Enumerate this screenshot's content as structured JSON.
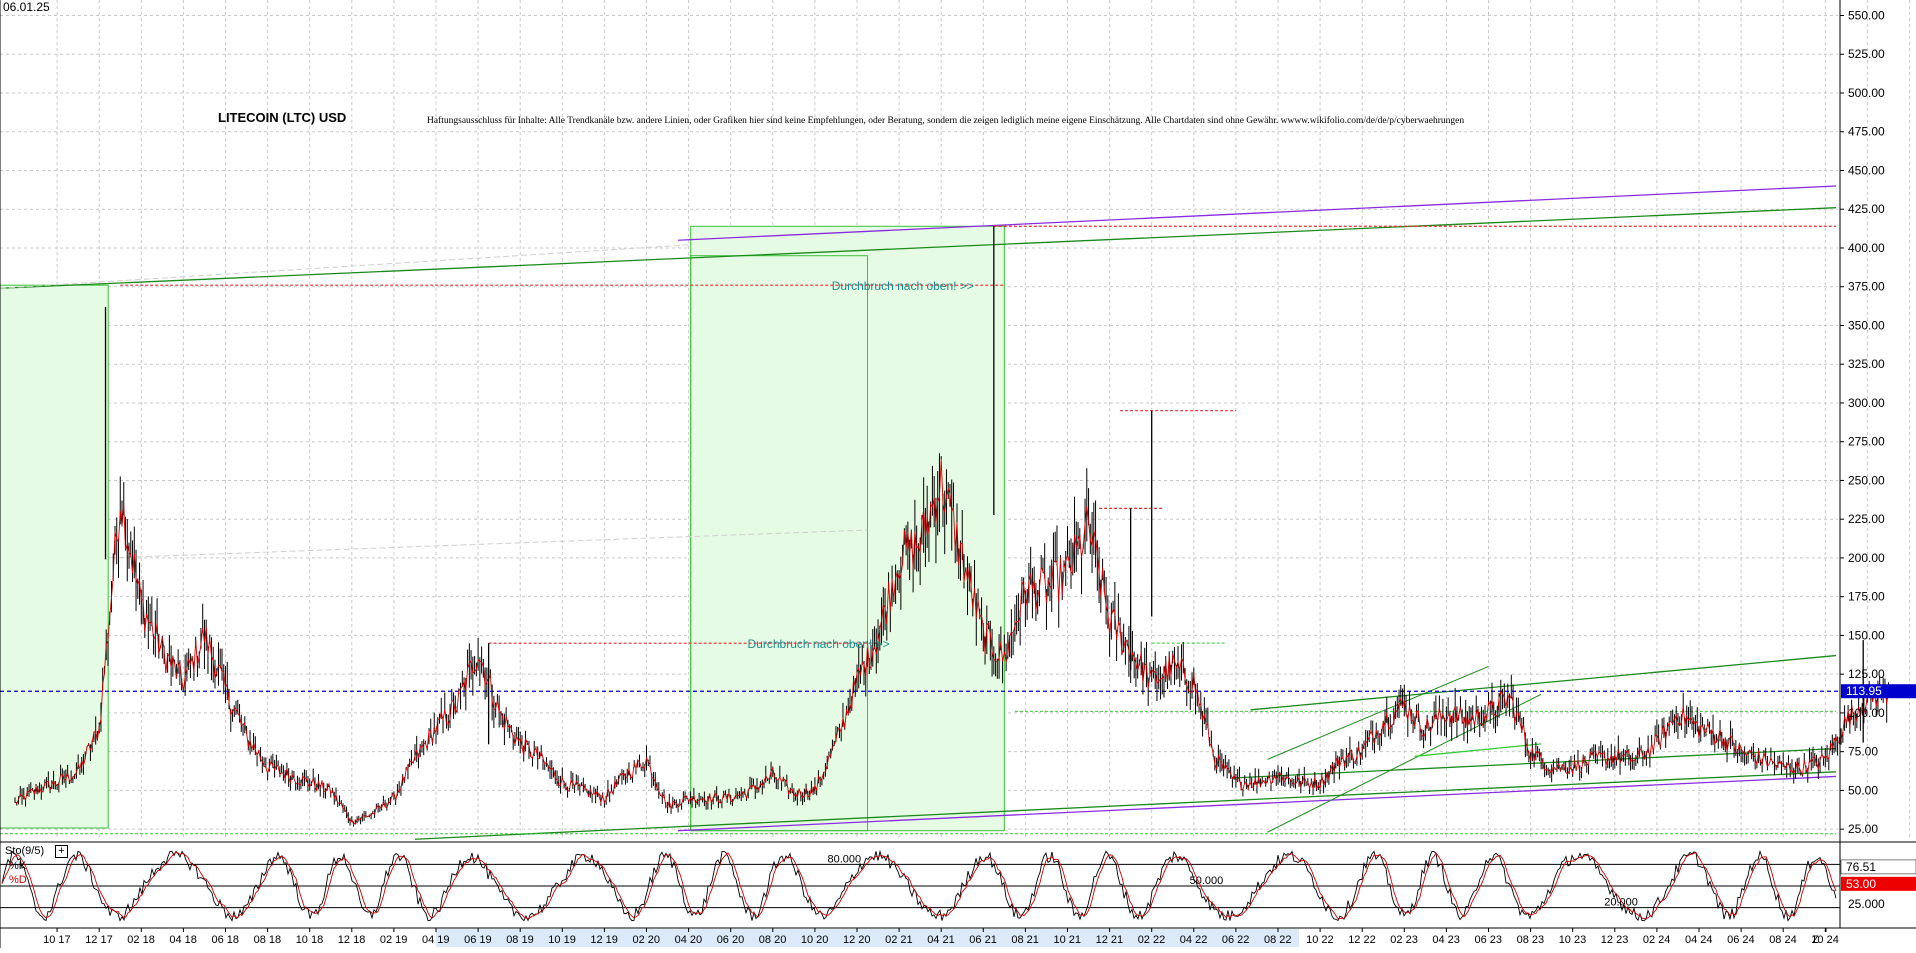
{
  "header": {
    "date": "06.01.25",
    "title": "LITECOIN (LTC) USD",
    "disclaimer": "Haftungsausschluss für Inhalte: Alle Trendkanäle bzw. andere Linien, oder Grafiken hier sind keine Empfehlungen, oder Beratung, sondern die zeigen lediglich meine eigene Einschätzung. Alle Chartdaten sind ohne Gewähr.  wwww.wikifolio.com/de/de/p/cyberwaehrungen"
  },
  "colors": {
    "candles": "#000000",
    "close_line": "#cc0000",
    "grid": "#c8c8c8",
    "trend_green": "#1a8a1a",
    "trend_purple": "#8a2be2",
    "resistance_red": "#e03030",
    "support_green": "#33cc33",
    "current_price": "#0000cc",
    "zone_fill": "#e6fbe3",
    "zone_border": "#39c039",
    "annotation": "#1e8c8c",
    "stoch_k": "#000000",
    "stoch_d": "#d00000",
    "price_tag": "#0000cc",
    "d_tag": "#ee0000"
  },
  "chart_data": {
    "type": "line",
    "series": [
      {
        "dates": [
          "2017-08",
          "2017-09",
          "2017-10",
          "2017-11",
          "2017-12",
          "2018-01",
          "2018-02",
          "2018-03",
          "2018-04",
          "2018-05",
          "2018-06",
          "2018-07",
          "2018-08",
          "2018-09",
          "2018-10",
          "2018-11",
          "2018-12",
          "2019-01",
          "2019-02",
          "2019-03",
          "2019-04",
          "2019-05",
          "2019-06",
          "2019-07",
          "2019-08",
          "2019-09",
          "2019-10",
          "2019-11",
          "2019-12",
          "2020-01",
          "2020-02",
          "2020-03",
          "2020-04",
          "2020-05",
          "2020-06",
          "2020-07",
          "2020-08",
          "2020-09",
          "2020-10",
          "2020-11",
          "2020-12",
          "2021-01",
          "2021-02",
          "2021-03",
          "2021-04",
          "2021-05",
          "2021-06",
          "2021-07",
          "2021-08",
          "2021-09",
          "2021-10",
          "2021-11",
          "2021-12",
          "2022-01",
          "2022-02",
          "2022-03",
          "2022-04",
          "2022-05",
          "2022-06",
          "2022-07",
          "2022-08",
          "2022-09",
          "2022-10",
          "2022-11",
          "2022-12",
          "2023-01",
          "2023-02",
          "2023-03",
          "2023-04",
          "2023-05",
          "2023-06",
          "2023-07",
          "2023-08",
          "2023-09",
          "2023-10",
          "2023-11",
          "2023-12",
          "2024-01",
          "2024-02",
          "2024-03",
          "2024-04",
          "2024-05",
          "2024-06",
          "2024-07",
          "2024-08",
          "2024-09",
          "2024-10",
          "2024-11",
          "2024-12",
          "2025-01"
        ],
        "close": [
          42,
          50,
          55,
          62,
          90,
          240,
          170,
          140,
          120,
          150,
          115,
          85,
          65,
          60,
          55,
          50,
          30,
          35,
          45,
          70,
          90,
          105,
          140,
          100,
          80,
          70,
          55,
          50,
          45,
          60,
          70,
          40,
          45,
          45,
          45,
          50,
          60,
          48,
          50,
          80,
          120,
          150,
          200,
          210,
          250,
          200,
          150,
          135,
          180,
          180,
          190,
          220,
          160,
          140,
          120,
          130,
          120,
          70,
          55,
          55,
          60,
          55,
          55,
          70,
          75,
          95,
          105,
          90,
          100,
          95,
          100,
          110,
          75,
          65,
          65,
          70,
          72,
          70,
          80,
          100,
          90,
          85,
          75,
          70,
          65,
          65,
          70,
          95,
          110,
          114
        ]
      }
    ],
    "price_axis": [
      "550.00",
      "525.00",
      "500.00",
      "475.00",
      "450.00",
      "425.00",
      "400.00",
      "375.00",
      "350.00",
      "325.00",
      "300.00",
      "275.00",
      "250.00",
      "225.00",
      "200.00",
      "175.00",
      "150.00",
      "125.00",
      "100.00",
      "75.00",
      "50.00",
      "25.00"
    ],
    "time_axis": [
      "10 17",
      "12 17",
      "02 18",
      "04 18",
      "06 18",
      "08 18",
      "10 18",
      "12 18",
      "02 19",
      "04 19",
      "06 19",
      "08 19",
      "10 19",
      "12 19",
      "02 20",
      "04 20",
      "06 20",
      "08 20",
      "10 20",
      "12 20",
      "02 21",
      "04 21",
      "06 21",
      "08 21",
      "10 21",
      "12 21",
      "02 22",
      "04 22",
      "06 22",
      "08 22",
      "10 22",
      "12 22",
      "02 23",
      "04 23",
      "06 23",
      "08 23",
      "10 23",
      "12 23",
      "02 24",
      "04 24",
      "06 24",
      "08 24",
      "10 24",
      "Z"
    ],
    "current_price": "113.95",
    "ylim": [
      18,
      560
    ],
    "annotations": [
      "Durchbruch nach oben! >>",
      "Durchbruch nach oben! >>"
    ],
    "stochastic": {
      "label": "Sto(9/5)",
      "k_label": "%K",
      "d_label": "%D",
      "k_value": "76.51",
      "d_value": "53.00",
      "axis": [
        "25.000"
      ],
      "levels": [
        "80.000",
        "50.000",
        "20.000"
      ]
    }
  }
}
